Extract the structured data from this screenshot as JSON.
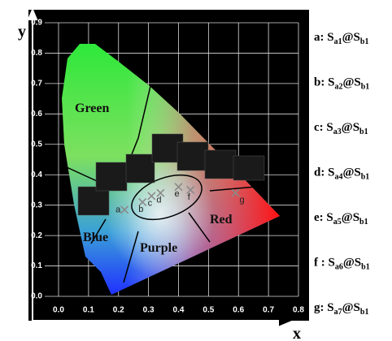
{
  "chart_data": {
    "type": "scatter",
    "x_label": "x",
    "y_label": "y",
    "xlim": [
      0,
      0.8
    ],
    "ylim": [
      0,
      0.9
    ],
    "xticks": [
      {
        "value": 0,
        "label": "0.0"
      },
      0.1,
      0.2,
      0.3,
      0.4,
      0.5,
      0.6,
      0.7,
      0.8
    ],
    "yticks": [
      {
        "value": 0,
        "label": "0.0"
      },
      0.1,
      0.2,
      0.3,
      0.4,
      0.5,
      0.6,
      0.7,
      0.8,
      0.9
    ],
    "grid": true,
    "series": [
      {
        "color": "#8a8a8a",
        "x": [
          0.22,
          0.28,
          0.31,
          0.34,
          0.4,
          0.44,
          0.59
        ],
        "values": [
          0.285,
          0.31,
          0.33,
          0.34,
          0.36,
          0.35,
          0.34
        ],
        "point_labels": [
          "a",
          "b",
          "c",
          "d",
          "e",
          "f",
          "g"
        ]
      }
    ],
    "annotations": [
      "Green",
      "Blue",
      "Purple",
      "Red"
    ],
    "legend": [
      {
        "prefix": "a: S",
        "sub1": "a1",
        "mid": "@S",
        "sub2": "b1"
      },
      {
        "prefix": "b: S",
        "sub1": "a2",
        "mid": "@S",
        "sub2": "b1"
      },
      {
        "prefix": "c: S",
        "sub1": "a3",
        "mid": "@S",
        "sub2": "b1"
      },
      {
        "prefix": "d: S",
        "sub1": "a4",
        "mid": "@S",
        "sub2": "b1"
      },
      {
        "prefix": "e: S",
        "sub1": "a5",
        "mid": "@S",
        "sub2": "b1"
      },
      {
        "prefix": "f : S",
        "sub1": "a6",
        "mid": "@S",
        "sub2": "b1"
      },
      {
        "prefix": "g: S",
        "sub1": "a7",
        "mid": "@S",
        "sub2": "b1"
      }
    ]
  }
}
